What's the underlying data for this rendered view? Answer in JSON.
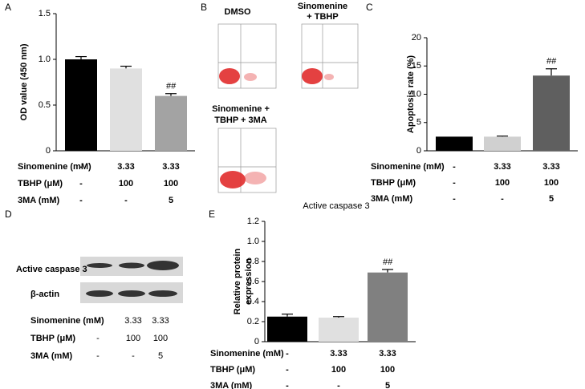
{
  "panel_labels": [
    "A",
    "B",
    "C",
    "D",
    "E"
  ],
  "chart_data": [
    {
      "type": "bar",
      "ylabel": [
        "OD value (450 nm)"
      ],
      "categories": [
        null,
        null,
        null
      ],
      "values": [
        1.0,
        0.9,
        0.6
      ],
      "errors": [
        0.03,
        0.025,
        0.025
      ],
      "colors": [
        "#000000",
        "#e0e0e0",
        "#a3a3a3"
      ],
      "annotations": [
        null,
        null,
        "##"
      ],
      "ylim": [
        0,
        1.5
      ],
      "yticks": [
        0,
        0.5,
        {
          "value": 1,
          "label": "1.0"
        },
        1.5
      ],
      "conditions": [
        {
          "label": "Sinomenine (mM)",
          "values": [
            "-",
            "3.33",
            "3.33"
          ]
        },
        {
          "label": "TBHP (μM)",
          "values": [
            "-",
            "100",
            "100"
          ]
        },
        {
          "label": "3MA (mM)",
          "values": [
            "-",
            "-",
            "5"
          ]
        }
      ]
    },
    {
      "type": "bar",
      "ylabel": [
        "Apoptosis rate (%)"
      ],
      "categories": [
        null,
        null,
        null
      ],
      "values": [
        2.5,
        2.5,
        13.3
      ],
      "errors": [
        0,
        0.1,
        1.2
      ],
      "colors": [
        "#000000",
        "#d0d0d0",
        "#5f5f5f"
      ],
      "annotations": [
        null,
        null,
        "##"
      ],
      "ylim": [
        0,
        20
      ],
      "yticks": [
        0,
        5,
        10,
        15,
        20
      ],
      "conditions": [
        {
          "label": "Sinomenine (mM)",
          "values": [
            "-",
            "3.33",
            "3.33"
          ]
        },
        {
          "label": "TBHP (μM)",
          "values": [
            "-",
            "100",
            "100"
          ]
        },
        {
          "label": "3MA (mM)",
          "values": [
            "-",
            "-",
            "5"
          ]
        }
      ]
    },
    {
      "type": "bar",
      "title": "Active caspase 3",
      "ylabel": [
        "Relative protein",
        "expression"
      ],
      "categories": [
        null,
        null,
        null
      ],
      "values": [
        0.25,
        0.24,
        0.69
      ],
      "errors": [
        0.025,
        0.01,
        0.03
      ],
      "colors": [
        "#000000",
        "#e0e0e0",
        "#808080"
      ],
      "annotations": [
        null,
        null,
        "##"
      ],
      "ylim": [
        0,
        1.2
      ],
      "yticks": [
        0,
        0.2,
        0.4,
        0.6,
        0.8,
        {
          "value": 1,
          "label": "1.0"
        },
        1.2
      ],
      "conditions": [
        {
          "label": "Sinomenine (mM)",
          "values": [
            "-",
            "3.33",
            "3.33"
          ]
        },
        {
          "label": "TBHP (μM)",
          "values": [
            "-",
            "100",
            "100"
          ]
        },
        {
          "label": "3MA (mM)",
          "values": [
            "-",
            "-",
            "5"
          ]
        }
      ]
    }
  ],
  "panel_b": {
    "titles": [
      [
        "DMSO"
      ],
      [
        "Sinomenine",
        "+ TBHP"
      ],
      [
        "Sinomenine +",
        "TBHP + 3MA"
      ]
    ]
  },
  "panel_d": {
    "bands": [
      "Active caspase 3",
      "β-actin"
    ],
    "conditions": [
      {
        "label": "Sinomenine (mM)",
        "values": [
          "-",
          "3.33",
          "3.33"
        ]
      },
      {
        "label": "TBHP (μM)",
        "values": [
          "-",
          "100",
          "100"
        ]
      },
      {
        "label": "3MA (mM)",
        "values": [
          "-",
          "-",
          "5"
        ]
      }
    ]
  }
}
